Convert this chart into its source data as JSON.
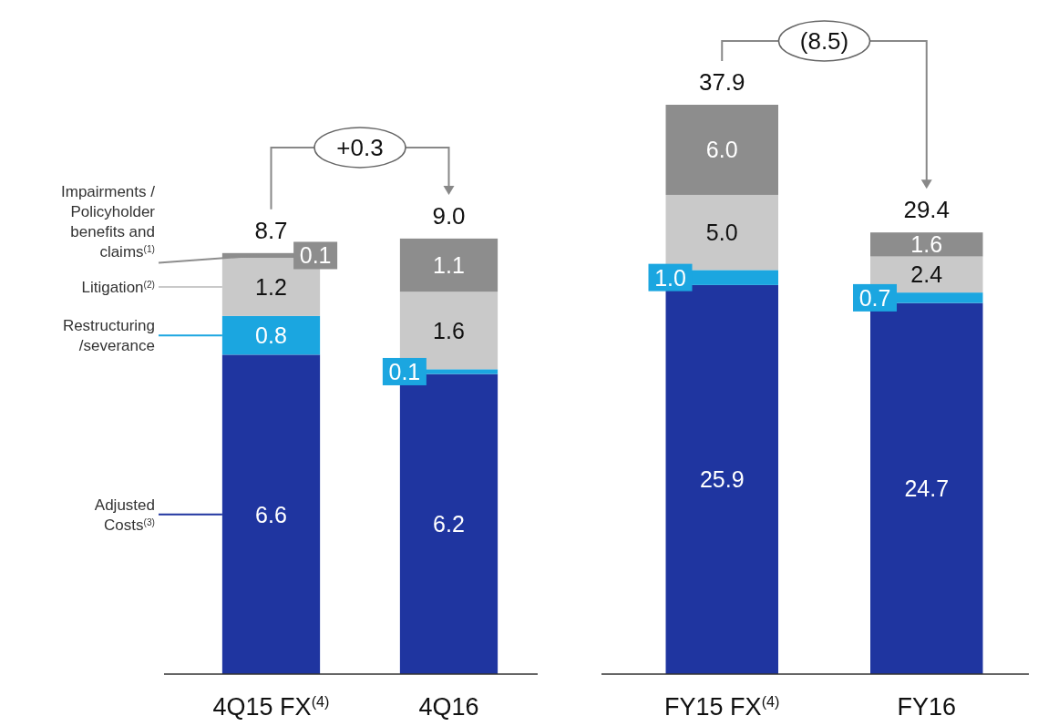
{
  "chart_data": [
    {
      "type": "bar",
      "stacked": true,
      "categories": [
        "4Q15 FX$^{(4)}$",
        "4Q16"
      ],
      "legend": "left",
      "totals": [
        "8.7",
        "9.0"
      ],
      "annotations": [
        "+0.3"
      ],
      "series": [
        {
          "name": "Adjusted Costs$^{(3)}$",
          "color": "#1f35a0",
          "values": [
            6.6,
            6.2
          ],
          "value_labels": [
            "6.6",
            "6.2"
          ]
        },
        {
          "name": "Restructuring /severance",
          "color": "#1ba6e0",
          "values": [
            0.8,
            0.1
          ],
          "value_labels": [
            "0.8",
            "0.1"
          ]
        },
        {
          "name": "Litigation$^{(2)}$",
          "color": "#c9c9c9",
          "values": [
            1.2,
            1.6
          ],
          "value_labels": [
            "1.2",
            "1.6"
          ]
        },
        {
          "name": "Impairments / Policyholder benefits and claims$^{(1)}$",
          "color": "#8d8d8d",
          "values": [
            0.1,
            1.1
          ],
          "value_labels": [
            "0.1",
            "1.1"
          ]
        }
      ]
    },
    {
      "type": "bar",
      "stacked": true,
      "categories": [
        "FY15 FX$^{(4)}$",
        "FY16"
      ],
      "totals": [
        "37.9",
        "29.4"
      ],
      "annotations": [
        "(8.5)"
      ],
      "series": [
        {
          "color": "#1f35a0",
          "values": [
            25.9,
            24.7
          ],
          "value_labels": [
            "25.9",
            "24.7"
          ]
        },
        {
          "color": "#1ba6e0",
          "values": [
            1.0,
            0.7
          ],
          "value_labels": [
            "1.0",
            "0.7"
          ]
        },
        {
          "color": "#c9c9c9",
          "values": [
            5.0,
            2.4
          ],
          "value_labels": [
            "5.0",
            "2.4"
          ]
        },
        {
          "color": "#8d8d8d",
          "values": [
            6.0,
            1.6
          ],
          "value_labels": [
            "6.0",
            "1.6"
          ]
        }
      ]
    }
  ]
}
